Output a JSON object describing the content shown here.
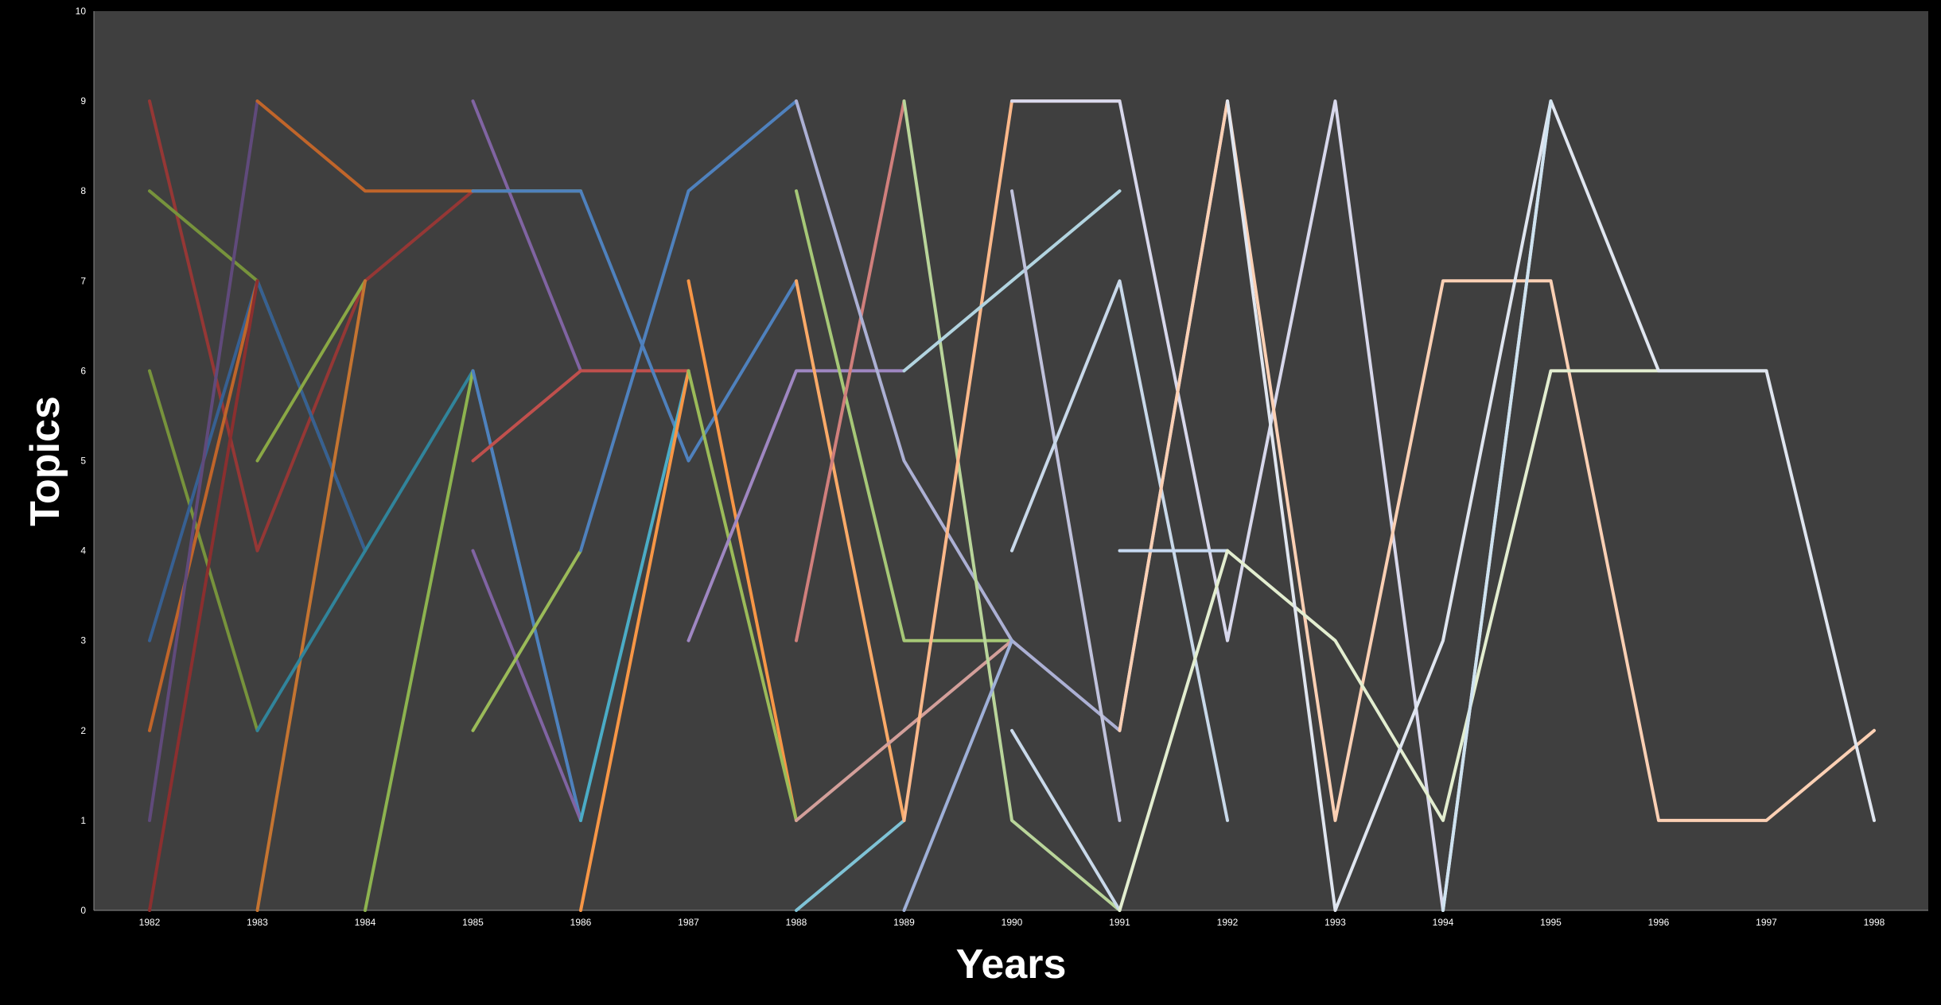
{
  "chart_data": {
    "type": "line",
    "xlabel": "Years",
    "ylabel": "Topics",
    "x": [
      "1982",
      "1983",
      "1984",
      "1985",
      "1986",
      "1987",
      "1988",
      "1989",
      "1990",
      "1991",
      "1992",
      "1993",
      "1994",
      "1995",
      "1996",
      "1997",
      "1998"
    ],
    "ylim": [
      0,
      10
    ],
    "yticks": [
      "0",
      "1",
      "2",
      "3",
      "4",
      "5",
      "6",
      "7",
      "8",
      "9",
      "10"
    ],
    "grid": false,
    "legend": "none",
    "colors": {
      "page_background": "#000000",
      "plot_background": "#3f3f3f",
      "text": "#ffffff"
    },
    "series": [
      {
        "color": "#953735",
        "points": [
          [
            1982,
            9
          ],
          [
            1983,
            4
          ],
          [
            1984,
            7
          ],
          [
            1985,
            8
          ]
        ]
      },
      {
        "color": "#77933c",
        "points": [
          [
            1982,
            8
          ],
          [
            1983,
            7
          ],
          [
            1984,
            4
          ]
        ]
      },
      {
        "color": "#77933c",
        "points": [
          [
            1982,
            6
          ],
          [
            1983,
            2
          ]
        ]
      },
      {
        "color": "#376092",
        "points": [
          [
            1982,
            3
          ],
          [
            1983,
            7
          ],
          [
            1984,
            4
          ]
        ]
      },
      {
        "color": "#c0652a",
        "points": [
          [
            1982,
            2
          ],
          [
            1983,
            7
          ]
        ]
      },
      {
        "color": "#604a7b",
        "points": [
          [
            1982,
            1
          ],
          [
            1983,
            9
          ]
        ]
      },
      {
        "color": "#8b2f2f",
        "points": [
          [
            1982,
            0
          ],
          [
            1983,
            7
          ]
        ]
      },
      {
        "color": "#c0652a",
        "points": [
          [
            1983,
            9
          ],
          [
            1984,
            8
          ],
          [
            1985,
            8
          ]
        ]
      },
      {
        "color": "#8aa845",
        "points": [
          [
            1983,
            5
          ],
          [
            1984,
            7
          ]
        ]
      },
      {
        "color": "#c47431",
        "points": [
          [
            1983,
            0
          ],
          [
            1984,
            7
          ]
        ]
      },
      {
        "color": "#31849b",
        "points": [
          [
            1983,
            2
          ],
          [
            1984,
            4
          ],
          [
            1985,
            6
          ],
          [
            1986,
            1
          ]
        ]
      },
      {
        "color": "#8db34f",
        "points": [
          [
            1984,
            0
          ],
          [
            1985,
            6
          ]
        ]
      },
      {
        "color": "#8064a2",
        "points": [
          [
            1985,
            9
          ],
          [
            1986,
            6
          ]
        ]
      },
      {
        "color": "#9bbb59",
        "points": [
          [
            1985,
            8
          ],
          [
            1986,
            8
          ]
        ]
      },
      {
        "color": "#4f81bd",
        "points": [
          [
            1985,
            6
          ],
          [
            1986,
            1
          ]
        ]
      },
      {
        "color": "#c0504d",
        "points": [
          [
            1985,
            5
          ],
          [
            1986,
            6
          ],
          [
            1987,
            6
          ]
        ]
      },
      {
        "color": "#8064a2",
        "points": [
          [
            1985,
            4
          ],
          [
            1986,
            1
          ]
        ]
      },
      {
        "color": "#9bbb59",
        "points": [
          [
            1985,
            2
          ],
          [
            1986,
            4
          ]
        ]
      },
      {
        "color": "#4f81bd",
        "points": [
          [
            1985,
            8
          ],
          [
            1986,
            8
          ],
          [
            1987,
            5
          ],
          [
            1988,
            7
          ]
        ]
      },
      {
        "color": "#4f81bd",
        "points": [
          [
            1986,
            4
          ],
          [
            1987,
            8
          ],
          [
            1988,
            9
          ]
        ]
      },
      {
        "color": "#4bacc6",
        "points": [
          [
            1986,
            1
          ],
          [
            1987,
            6
          ]
        ]
      },
      {
        "color": "#f79646",
        "points": [
          [
            1986,
            0
          ],
          [
            1987,
            6
          ]
        ]
      },
      {
        "color": "#f79646",
        "points": [
          [
            1987,
            7
          ],
          [
            1988,
            1
          ]
        ]
      },
      {
        "color": "#9bbb59",
        "points": [
          [
            1987,
            6
          ],
          [
            1988,
            1
          ]
        ]
      },
      {
        "color": "#9f87c2",
        "points": [
          [
            1987,
            3
          ],
          [
            1988,
            6
          ],
          [
            1989,
            6
          ]
        ]
      },
      {
        "color": "#a6c877",
        "points": [
          [
            1988,
            8
          ],
          [
            1989,
            3
          ],
          [
            1990,
            3
          ]
        ]
      },
      {
        "color": "#fbaa68",
        "points": [
          [
            1988,
            7
          ],
          [
            1989,
            1
          ]
        ]
      },
      {
        "color": "#d07f7c",
        "points": [
          [
            1988,
            3
          ],
          [
            1989,
            9
          ]
        ]
      },
      {
        "color": "#d39f9a",
        "points": [
          [
            1988,
            1
          ],
          [
            1989,
            2
          ],
          [
            1990,
            3
          ]
        ]
      },
      {
        "color": "#7fc3d6",
        "points": [
          [
            1988,
            0
          ],
          [
            1989,
            1
          ]
        ]
      },
      {
        "color": "#acb0d4",
        "points": [
          [
            1988,
            9
          ],
          [
            1989,
            5
          ],
          [
            1990,
            3
          ],
          [
            1991,
            2
          ],
          [
            1992,
            9
          ]
        ]
      },
      {
        "color": "#b9d59a",
        "points": [
          [
            1989,
            9
          ],
          [
            1990,
            1
          ],
          [
            1991,
            0
          ]
        ]
      },
      {
        "color": "#fcb88a",
        "points": [
          [
            1989,
            1
          ],
          [
            1990,
            9
          ],
          [
            1991,
            9
          ]
        ]
      },
      {
        "color": "#9fb0d8",
        "points": [
          [
            1989,
            0
          ],
          [
            1990,
            3
          ]
        ]
      },
      {
        "color": "#b2d4e0",
        "points": [
          [
            1989,
            6
          ],
          [
            1990,
            7
          ],
          [
            1991,
            8
          ]
        ]
      },
      {
        "color": "#c0c2dc",
        "points": [
          [
            1990,
            8
          ],
          [
            1991,
            1
          ]
        ]
      },
      {
        "color": "#c9d9ea",
        "points": [
          [
            1990,
            4
          ],
          [
            1991,
            7
          ],
          [
            1992,
            1
          ]
        ]
      },
      {
        "color": "#c9d9ea",
        "points": [
          [
            1990,
            2
          ],
          [
            1991,
            0
          ]
        ]
      },
      {
        "color": "#d8d8ec",
        "points": [
          [
            1990,
            9
          ],
          [
            1991,
            9
          ],
          [
            1992,
            3
          ],
          [
            1993,
            9
          ],
          [
            1994,
            0
          ],
          [
            1995,
            9
          ]
        ]
      },
      {
        "color": "#fcd0b4",
        "points": [
          [
            1991,
            2
          ],
          [
            1992,
            9
          ],
          [
            1993,
            1
          ],
          [
            1994,
            7
          ],
          [
            1995,
            7
          ],
          [
            1996,
            1
          ],
          [
            1997,
            1
          ],
          [
            1998,
            2
          ]
        ]
      },
      {
        "color": "#c6d9f1",
        "points": [
          [
            1991,
            4
          ],
          [
            1992,
            4
          ]
        ]
      },
      {
        "color": "#e3eed0",
        "points": [
          [
            1991,
            0
          ],
          [
            1992,
            4
          ],
          [
            1993,
            3
          ],
          [
            1994,
            1
          ],
          [
            1995,
            6
          ],
          [
            1996,
            6
          ],
          [
            1997,
            6
          ]
        ]
      },
      {
        "color": "#e0e6f0",
        "points": [
          [
            1992,
            9
          ],
          [
            1993,
            0
          ],
          [
            1994,
            3
          ],
          [
            1995,
            9
          ],
          [
            1996,
            6
          ],
          [
            1997,
            6
          ],
          [
            1998,
            1
          ]
        ]
      },
      {
        "color": "#cfe3f0",
        "points": [
          [
            1994,
            0
          ],
          [
            1995,
            9
          ]
        ]
      }
    ]
  }
}
